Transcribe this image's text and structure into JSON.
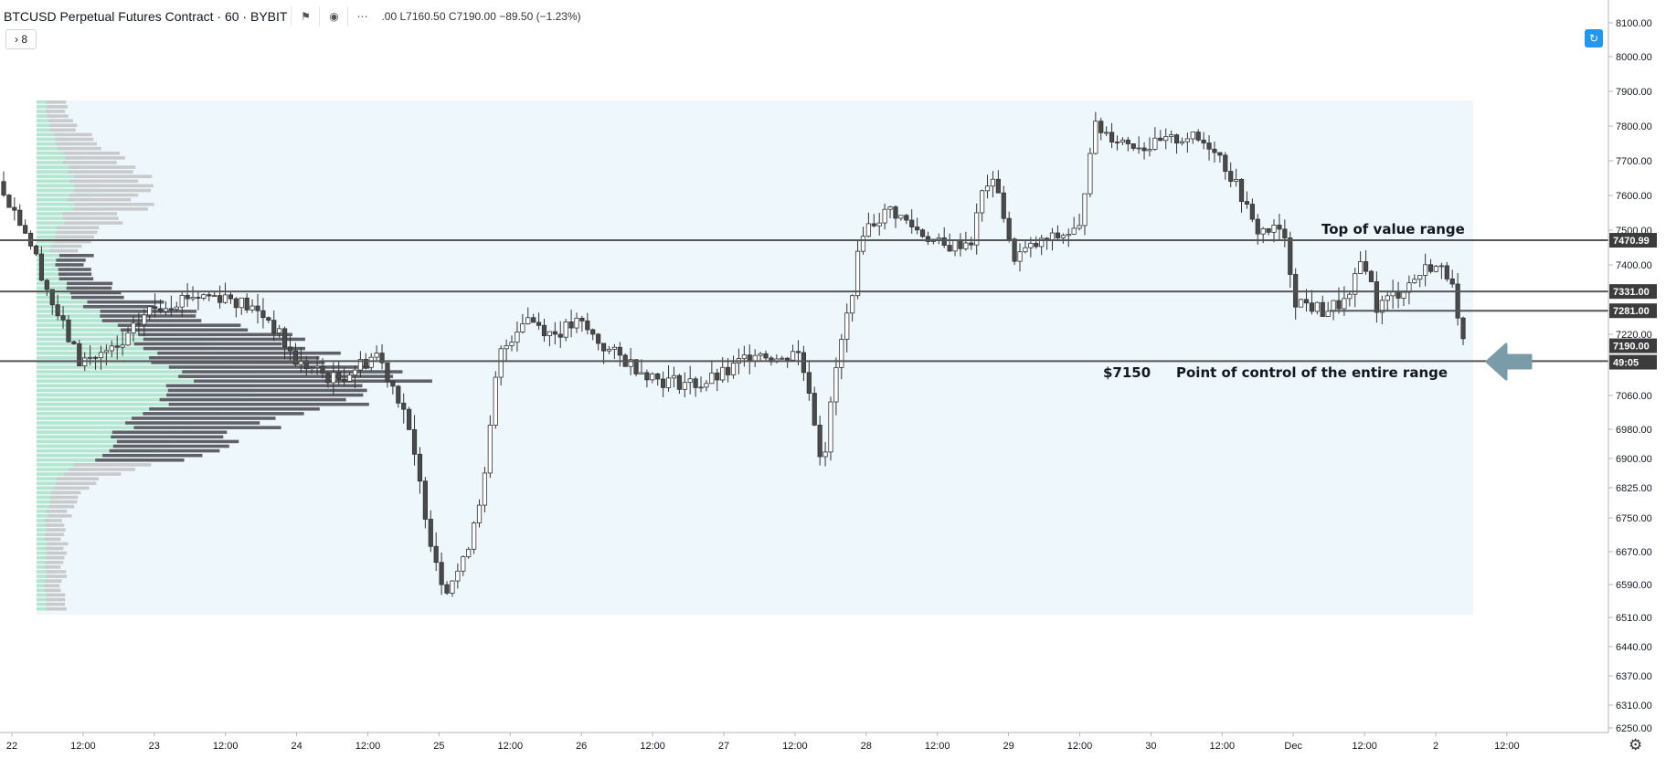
{
  "header": {
    "symbol": "BTCUSD Perpetual Futures Contract · 60 · BYBIT",
    "ohlc": ".00   L7160.50   C7190.00   −89.50 (−1.23%)",
    "collapse_label": "› 8"
  },
  "chart_data": {
    "type": "candlestick",
    "title": "BTCUSD Perpetual Futures Contract · 60 · BYBIT",
    "x_axis_labels": [
      "22",
      "12:00",
      "23",
      "12:00",
      "24",
      "12:00",
      "25",
      "12:00",
      "26",
      "12:00",
      "27",
      "12:00",
      "28",
      "12:00",
      "29",
      "12:00",
      "30",
      "12:00",
      "Dec",
      "12:00",
      "2",
      "12:00"
    ],
    "y_axis_labels": [
      "8100.00",
      "8000.00",
      "7900.00",
      "7800.00",
      "7700.00",
      "7600.00",
      "7500.00",
      "7400.00",
      "7220.00",
      "7060.00",
      "6980.00",
      "6900.00",
      "6825.00",
      "6750.00",
      "6670.00",
      "6590.00",
      "6510.00",
      "6440.00",
      "6370.00",
      "6310.00",
      "6250.00"
    ],
    "ylim": [
      6250,
      8100
    ],
    "price_tags": [
      "7470.99",
      "7331.00",
      "7281.00",
      "7190.00",
      "49:05"
    ],
    "levels": [
      {
        "price": 7470.99,
        "label": "Top of value range"
      },
      {
        "price": 7331.0,
        "label": ""
      },
      {
        "price": 7281.0,
        "label": ""
      },
      {
        "price": 7150,
        "label": "Point of control of the entire range",
        "value_label": "$7150"
      }
    ],
    "annotations": [
      "Top of value range",
      "$7150",
      "Point of control of the entire range"
    ],
    "candle_waypoints": [
      [
        0,
        7640
      ],
      [
        10,
        7500
      ],
      [
        20,
        7300
      ],
      [
        30,
        7150
      ],
      [
        45,
        7180
      ],
      [
        55,
        7280
      ],
      [
        70,
        7320
      ],
      [
        85,
        7320
      ],
      [
        100,
        7260
      ],
      [
        110,
        7150
      ],
      [
        125,
        7100
      ],
      [
        140,
        7170
      ],
      [
        150,
        7030
      ],
      [
        160,
        6700
      ],
      [
        165,
        6580
      ],
      [
        172,
        6640
      ],
      [
        180,
        6850
      ],
      [
        185,
        7160
      ],
      [
        195,
        7270
      ],
      [
        205,
        7220
      ],
      [
        215,
        7250
      ],
      [
        225,
        7180
      ],
      [
        235,
        7140
      ],
      [
        245,
        7100
      ],
      [
        260,
        7090
      ],
      [
        270,
        7120
      ],
      [
        280,
        7180
      ],
      [
        290,
        7150
      ],
      [
        295,
        7190
      ],
      [
        300,
        7080
      ],
      [
        305,
        6880
      ],
      [
        310,
        7130
      ],
      [
        315,
        7300
      ],
      [
        320,
        7500
      ],
      [
        330,
        7560
      ],
      [
        340,
        7500
      ],
      [
        350,
        7450
      ],
      [
        360,
        7470
      ],
      [
        365,
        7640
      ],
      [
        370,
        7620
      ],
      [
        375,
        7420
      ],
      [
        385,
        7460
      ],
      [
        395,
        7490
      ],
      [
        400,
        7500
      ],
      [
        405,
        7800
      ],
      [
        415,
        7760
      ],
      [
        425,
        7740
      ],
      [
        440,
        7770
      ],
      [
        450,
        7740
      ],
      [
        460,
        7600
      ],
      [
        465,
        7500
      ],
      [
        475,
        7500
      ],
      [
        480,
        7310
      ],
      [
        490,
        7280
      ],
      [
        500,
        7310
      ],
      [
        505,
        7430
      ],
      [
        510,
        7290
      ],
      [
        520,
        7340
      ],
      [
        530,
        7400
      ],
      [
        538,
        7370
      ],
      [
        541,
        7190
      ]
    ],
    "profile_rows": 110,
    "colors": {
      "up": "#ffffff",
      "down": "#4a4a4a",
      "outline": "#333333",
      "value_area_bg": "#eef7fc",
      "profile_value": "#5f6166",
      "profile_outside": "#c9cacc",
      "profile_tick": "#9fe0c0",
      "arrow": "#7a9ca8",
      "scale_button": "#2196f3"
    }
  }
}
